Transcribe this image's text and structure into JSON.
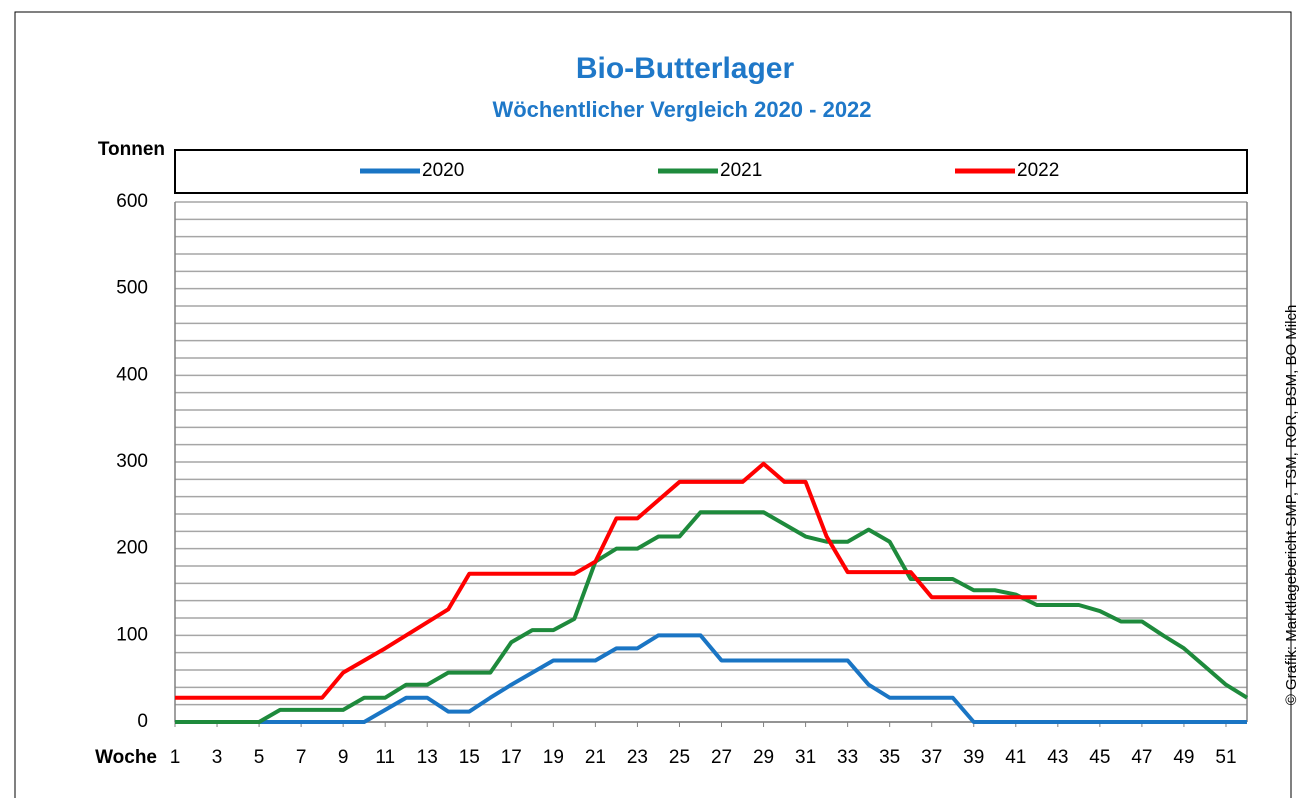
{
  "chart_data": {
    "type": "line",
    "title": "Bio-Butterlager",
    "subtitle": "Wöchentlicher Vergleich 2020 - 2022",
    "y_label": "Tonnen",
    "x_label": "Woche",
    "source": "© Grafik: Marktlagebericht SMP, TSM, ROR, BSM, BO Milch",
    "x": [
      1,
      2,
      3,
      4,
      5,
      6,
      7,
      8,
      9,
      10,
      11,
      12,
      13,
      14,
      15,
      16,
      17,
      18,
      19,
      20,
      21,
      22,
      23,
      24,
      25,
      26,
      27,
      28,
      29,
      30,
      31,
      32,
      33,
      34,
      35,
      36,
      37,
      38,
      39,
      40,
      41,
      42,
      43,
      44,
      45,
      46,
      47,
      48,
      49,
      50,
      51,
      52
    ],
    "xlim": [
      1,
      52
    ],
    "xticks": [
      1,
      3,
      5,
      7,
      9,
      11,
      13,
      15,
      17,
      19,
      21,
      23,
      25,
      27,
      29,
      31,
      33,
      35,
      37,
      39,
      41,
      43,
      45,
      47,
      49,
      51
    ],
    "ylim": [
      0,
      600
    ],
    "yticks": [
      0,
      100,
      200,
      300,
      400,
      500,
      600
    ],
    "minor_yticks": [
      20,
      40,
      60,
      80,
      120,
      140,
      160,
      180,
      220,
      240,
      260,
      280,
      320,
      340,
      360,
      380,
      420,
      440,
      460,
      480,
      520,
      540,
      560,
      580
    ],
    "grid": true,
    "series": [
      {
        "name": "2020",
        "color": "#1a75c4",
        "values": [
          0,
          0,
          0,
          0,
          0,
          0,
          0,
          0,
          0,
          0,
          14,
          28,
          28,
          12,
          12,
          28,
          43,
          57,
          71,
          71,
          71,
          85,
          85,
          100,
          100,
          100,
          71,
          71,
          71,
          71,
          71,
          71,
          71,
          43,
          28,
          28,
          28,
          28,
          0,
          0,
          0,
          0,
          0,
          0,
          0,
          0,
          0,
          0,
          0,
          0,
          0,
          0
        ]
      },
      {
        "name": "2021",
        "color": "#1e8a3c",
        "values": [
          0,
          0,
          0,
          0,
          0,
          14,
          14,
          14,
          14,
          28,
          28,
          43,
          43,
          57,
          57,
          57,
          92,
          106,
          106,
          119,
          185,
          200,
          200,
          214,
          214,
          242,
          242,
          242,
          242,
          228,
          214,
          208,
          208,
          222,
          208,
          165,
          165,
          165,
          152,
          152,
          147,
          135,
          135,
          135,
          128,
          116,
          116,
          100,
          85,
          64,
          43,
          28
        ]
      },
      {
        "name": "2022",
        "color": "#ff0000",
        "values": [
          28,
          28,
          28,
          28,
          28,
          28,
          28,
          28,
          57,
          71,
          85,
          100,
          115,
          130,
          171,
          171,
          171,
          171,
          171,
          171,
          185,
          235,
          235,
          256,
          277,
          277,
          277,
          277,
          298,
          277,
          277,
          214,
          173,
          173,
          173,
          173,
          144,
          144,
          144,
          144,
          144,
          144,
          null,
          null,
          null,
          null,
          null,
          null,
          null,
          null,
          null,
          null
        ]
      }
    ]
  }
}
